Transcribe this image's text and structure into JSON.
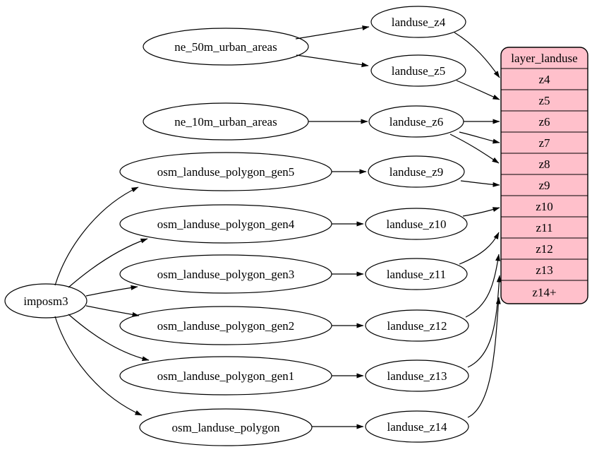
{
  "diagram": {
    "kind": "dependency-graph",
    "colors": {
      "background": "#ffffff",
      "node_fill": "#ffffff",
      "record_fill": "#ffc0cb",
      "stroke": "#000000"
    },
    "nodes": {
      "imposm3": "imposm3",
      "ne_50m_urban_areas": "ne_50m_urban_areas",
      "ne_10m_urban_areas": "ne_10m_urban_areas",
      "osm_landuse_polygon_gen5": "osm_landuse_polygon_gen5",
      "osm_landuse_polygon_gen4": "osm_landuse_polygon_gen4",
      "osm_landuse_polygon_gen3": "osm_landuse_polygon_gen3",
      "osm_landuse_polygon_gen2": "osm_landuse_polygon_gen2",
      "osm_landuse_polygon_gen1": "osm_landuse_polygon_gen1",
      "osm_landuse_polygon": "osm_landuse_polygon",
      "landuse_z4": "landuse_z4",
      "landuse_z5": "landuse_z5",
      "landuse_z6": "landuse_z6",
      "landuse_z9": "landuse_z9",
      "landuse_z10": "landuse_z10",
      "landuse_z11": "landuse_z11",
      "landuse_z12": "landuse_z12",
      "landuse_z13": "landuse_z13",
      "landuse_z14": "landuse_z14"
    },
    "record": {
      "title": "layer_landuse",
      "rows": [
        "z4",
        "z5",
        "z6",
        "z7",
        "z8",
        "z9",
        "z10",
        "z11",
        "z12",
        "z13",
        "z14+"
      ]
    },
    "edges": [
      {
        "from": "ne_50m_urban_areas",
        "to": "landuse_z4"
      },
      {
        "from": "ne_50m_urban_areas",
        "to": "landuse_z5"
      },
      {
        "from": "ne_10m_urban_areas",
        "to": "landuse_z6"
      },
      {
        "from": "imposm3",
        "to": "osm_landuse_polygon_gen5"
      },
      {
        "from": "imposm3",
        "to": "osm_landuse_polygon_gen4"
      },
      {
        "from": "imposm3",
        "to": "osm_landuse_polygon_gen3"
      },
      {
        "from": "imposm3",
        "to": "osm_landuse_polygon_gen2"
      },
      {
        "from": "imposm3",
        "to": "osm_landuse_polygon_gen1"
      },
      {
        "from": "imposm3",
        "to": "osm_landuse_polygon"
      },
      {
        "from": "osm_landuse_polygon_gen5",
        "to": "landuse_z9"
      },
      {
        "from": "osm_landuse_polygon_gen4",
        "to": "landuse_z10"
      },
      {
        "from": "osm_landuse_polygon_gen3",
        "to": "landuse_z11"
      },
      {
        "from": "osm_landuse_polygon_gen2",
        "to": "landuse_z12"
      },
      {
        "from": "osm_landuse_polygon_gen1",
        "to": "landuse_z13"
      },
      {
        "from": "osm_landuse_polygon",
        "to": "landuse_z14"
      },
      {
        "from": "landuse_z4",
        "to": "layer_landuse:z4"
      },
      {
        "from": "landuse_z5",
        "to": "layer_landuse:z5"
      },
      {
        "from": "landuse_z6",
        "to": "layer_landuse:z6"
      },
      {
        "from": "landuse_z6",
        "to": "layer_landuse:z7"
      },
      {
        "from": "landuse_z6",
        "to": "layer_landuse:z8"
      },
      {
        "from": "landuse_z9",
        "to": "layer_landuse:z9"
      },
      {
        "from": "landuse_z10",
        "to": "layer_landuse:z10"
      },
      {
        "from": "landuse_z11",
        "to": "layer_landuse:z11"
      },
      {
        "from": "landuse_z12",
        "to": "layer_landuse:z12"
      },
      {
        "from": "landuse_z13",
        "to": "layer_landuse:z13"
      },
      {
        "from": "landuse_z14",
        "to": "layer_landuse:z14+"
      }
    ]
  }
}
